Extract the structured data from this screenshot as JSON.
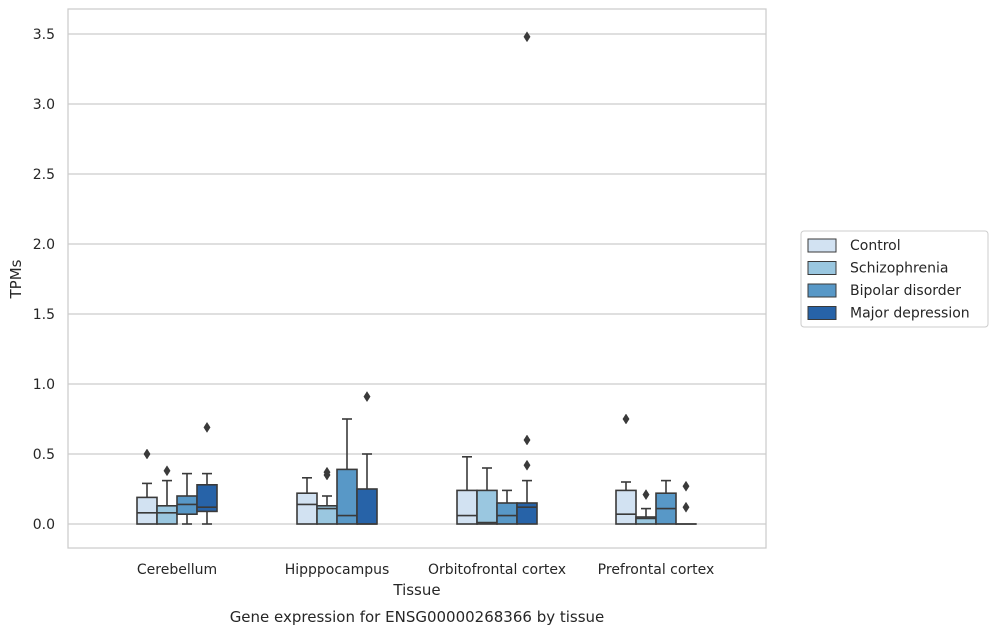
{
  "chart_data": {
    "type": "box",
    "xlabel": "Tissue",
    "ylabel": "TPMs",
    "caption": "Gene expression for ENSG00000268366 by tissue",
    "ylim": [
      -0.17,
      3.66
    ],
    "yticks": [
      0.0,
      0.5,
      1.0,
      1.5,
      2.0,
      2.5,
      3.0,
      3.5
    ],
    "ytick_labels": [
      "0.0",
      "0.5",
      "1.0",
      "1.5",
      "2.0",
      "2.5",
      "3.0",
      "3.5"
    ],
    "grid": "horizontal",
    "legend_position": "right",
    "categories": [
      "Cerebellum",
      "Hipppocampus",
      "Orbitofrontal cortex",
      "Prefrontal cortex"
    ],
    "series": [
      {
        "name": "Control",
        "color": "#d2e2f2",
        "boxes": [
          {
            "q1": 0.0,
            "median": 0.08,
            "q3": 0.19,
            "whislo": 0.0,
            "whishi": 0.29,
            "fliers": [
              0.5
            ]
          },
          {
            "q1": 0.0,
            "median": 0.14,
            "q3": 0.22,
            "whislo": 0.0,
            "whishi": 0.33,
            "fliers": []
          },
          {
            "q1": 0.0,
            "median": 0.06,
            "q3": 0.24,
            "whislo": 0.0,
            "whishi": 0.48,
            "fliers": []
          },
          {
            "q1": 0.0,
            "median": 0.07,
            "q3": 0.24,
            "whislo": 0.0,
            "whishi": 0.3,
            "fliers": [
              0.75
            ]
          }
        ]
      },
      {
        "name": "Schizophrenia",
        "color": "#9ac7e0",
        "boxes": [
          {
            "q1": 0.0,
            "median": 0.08,
            "q3": 0.13,
            "whislo": 0.0,
            "whishi": 0.31,
            "fliers": [
              0.38
            ]
          },
          {
            "q1": 0.0,
            "median": 0.11,
            "q3": 0.13,
            "whislo": 0.0,
            "whishi": 0.2,
            "fliers": [
              0.35,
              0.37
            ]
          },
          {
            "q1": 0.0,
            "median": 0.01,
            "q3": 0.24,
            "whislo": 0.0,
            "whishi": 0.4,
            "fliers": []
          },
          {
            "q1": 0.0,
            "median": 0.04,
            "q3": 0.05,
            "whislo": 0.0,
            "whishi": 0.11,
            "fliers": [
              0.21
            ]
          }
        ]
      },
      {
        "name": "Bipolar disorder",
        "color": "#5898c7",
        "boxes": [
          {
            "q1": 0.07,
            "median": 0.14,
            "q3": 0.2,
            "whislo": 0.0,
            "whishi": 0.36,
            "fliers": []
          },
          {
            "q1": 0.0,
            "median": 0.06,
            "q3": 0.39,
            "whislo": 0.0,
            "whishi": 0.75,
            "fliers": []
          },
          {
            "q1": 0.0,
            "median": 0.06,
            "q3": 0.15,
            "whislo": 0.0,
            "whishi": 0.24,
            "fliers": []
          },
          {
            "q1": 0.0,
            "median": 0.11,
            "q3": 0.22,
            "whislo": 0.0,
            "whishi": 0.31,
            "fliers": []
          }
        ]
      },
      {
        "name": "Major depression",
        "color": "#2763a8",
        "boxes": [
          {
            "q1": 0.09,
            "median": 0.12,
            "q3": 0.28,
            "whislo": 0.0,
            "whishi": 0.36,
            "fliers": [
              0.69
            ]
          },
          {
            "q1": 0.0,
            "median": 0.0,
            "q3": 0.25,
            "whislo": 0.0,
            "whishi": 0.5,
            "fliers": [
              0.91
            ]
          },
          {
            "q1": 0.0,
            "median": 0.12,
            "q3": 0.15,
            "whislo": 0.0,
            "whishi": 0.31,
            "fliers": [
              0.42,
              0.6,
              3.48
            ]
          },
          {
            "q1": 0.0,
            "median": 0.0,
            "q3": 0.0,
            "whislo": 0.0,
            "whishi": 0.0,
            "fliers": [
              0.12,
              0.27
            ]
          }
        ]
      }
    ]
  }
}
